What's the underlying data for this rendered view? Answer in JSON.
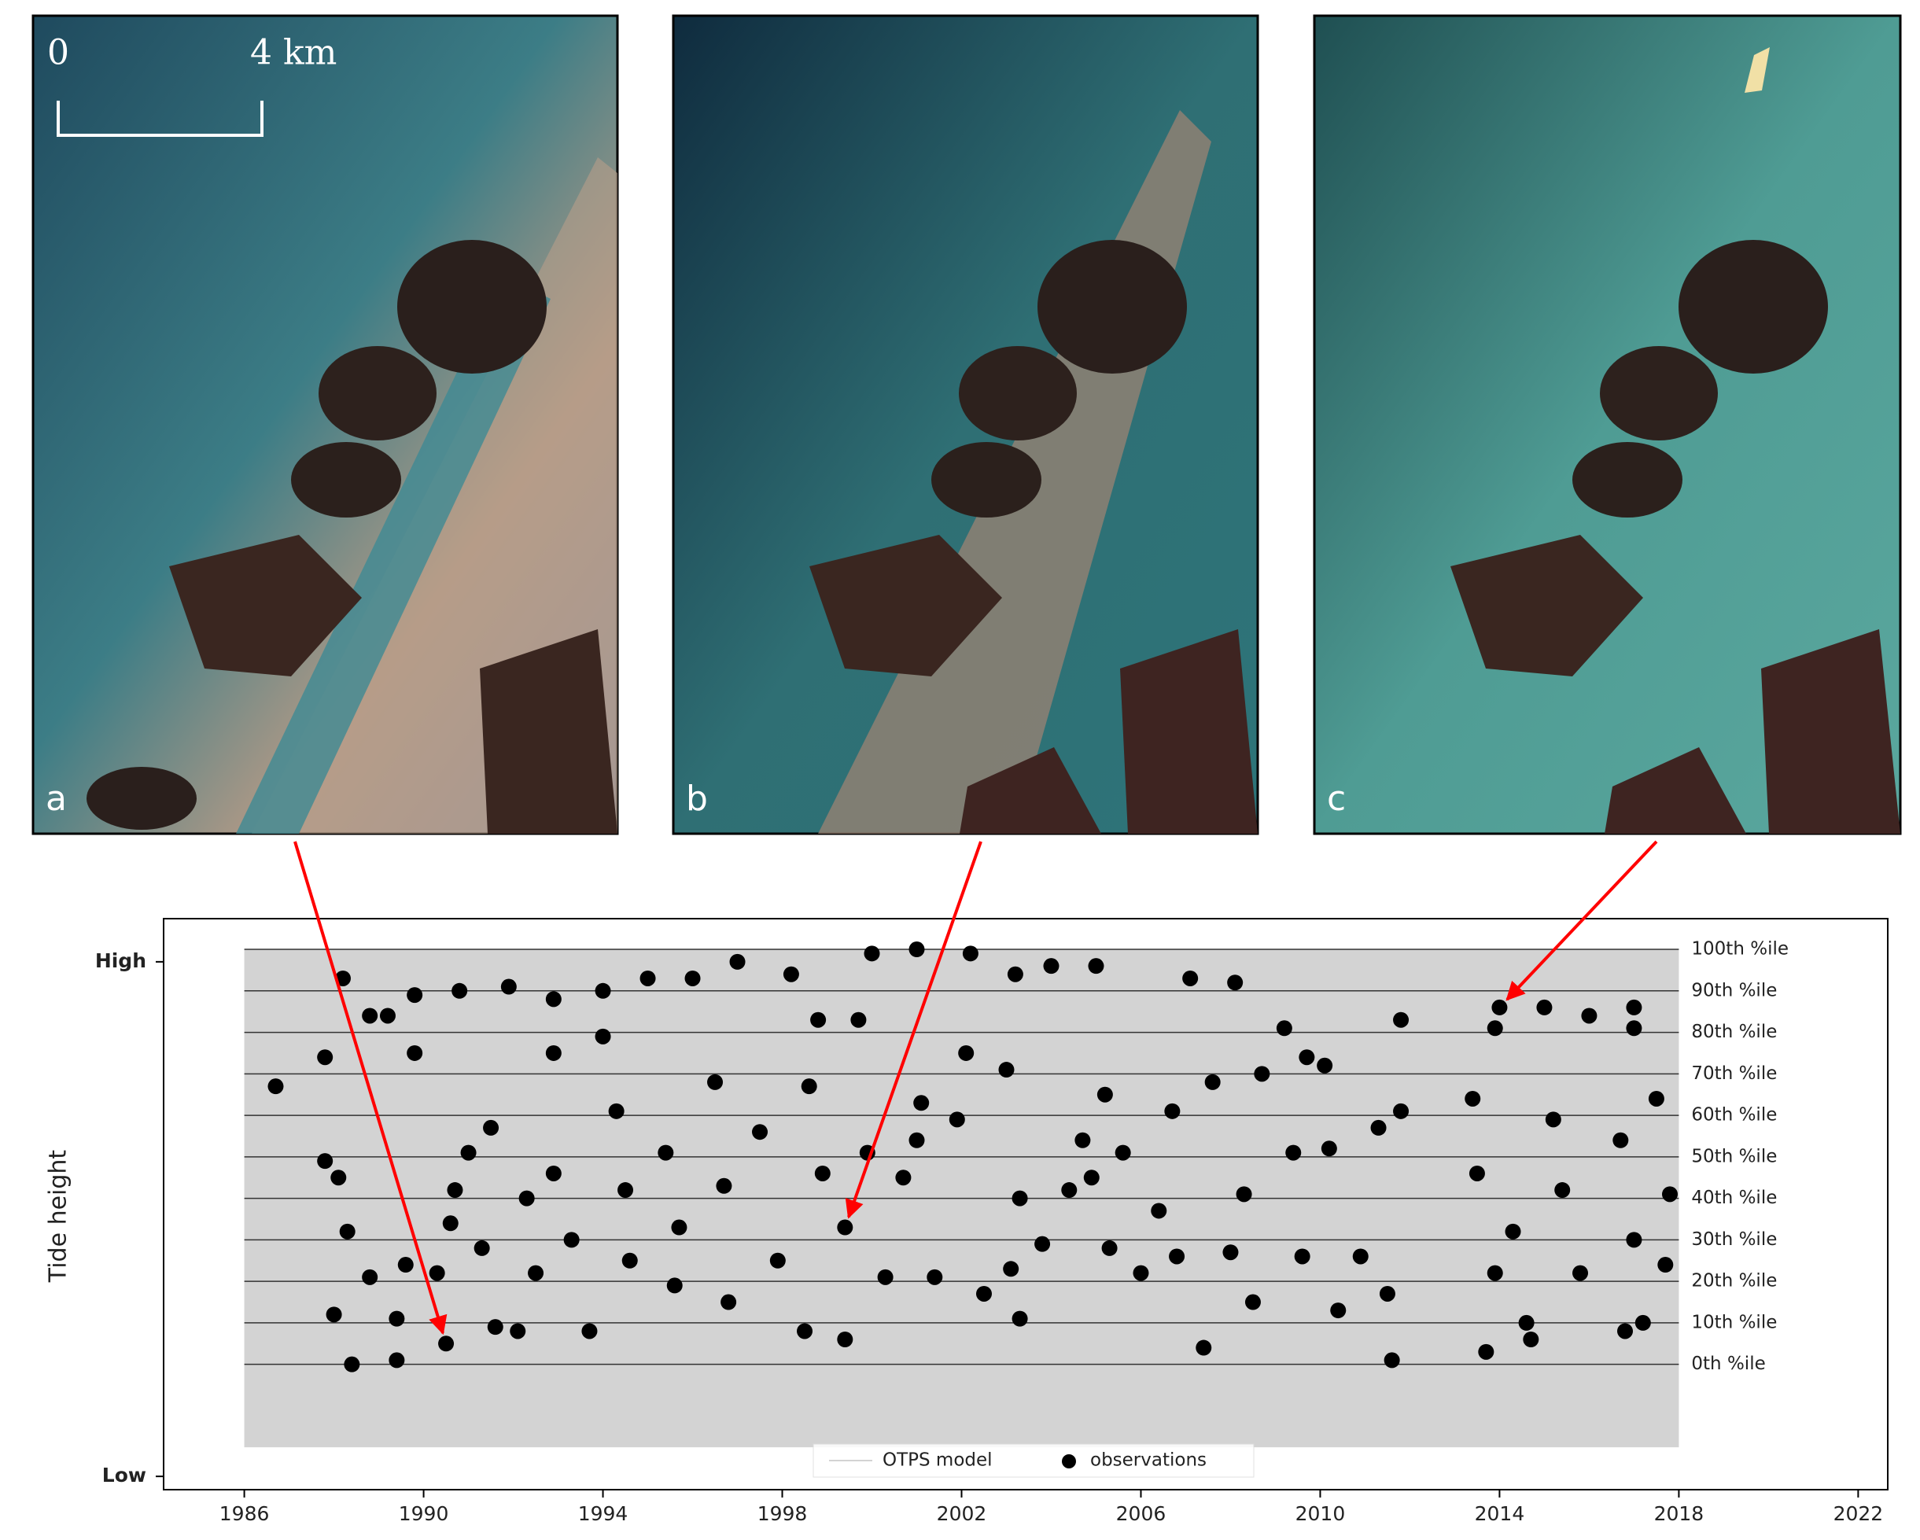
{
  "panels": [
    {
      "label": "a"
    },
    {
      "label": "b"
    },
    {
      "label": "c"
    }
  ],
  "scale_bar": {
    "start": "0",
    "end": "4 km"
  },
  "chart_data": {
    "type": "scatter",
    "y_label": "Tide height",
    "xlim": [
      1984.2,
      2022.66
    ],
    "ylim": [
      -30.2,
      107.4
    ],
    "xticks": [
      1986,
      1990,
      1994,
      1998,
      2002,
      2006,
      2010,
      2014,
      2018,
      2022
    ],
    "yticks": [
      {
        "value": 97,
        "label": "High"
      },
      {
        "value": -27,
        "label": "Low"
      }
    ],
    "hlines": [
      {
        "value": 100,
        "label": "100th %ile"
      },
      {
        "value": 90,
        "label": "90th %ile"
      },
      {
        "value": 80,
        "label": "80th %ile"
      },
      {
        "value": 70,
        "label": "70th %ile"
      },
      {
        "value": 60,
        "label": "60th %ile"
      },
      {
        "value": 50,
        "label": "50th %ile"
      },
      {
        "value": 40,
        "label": "40th %ile"
      },
      {
        "value": 30,
        "label": "30th %ile"
      },
      {
        "value": 20,
        "label": "20th %ile"
      },
      {
        "value": 10,
        "label": "10th %ile"
      },
      {
        "value": 0,
        "label": "0th %ile"
      }
    ],
    "legend": "lower center",
    "model": {
      "name": "OTPS model",
      "color": "#d3d3d3",
      "x": [
        1986,
        2018
      ],
      "high": [
        100,
        100
      ],
      "low": [
        -20,
        -20
      ]
    },
    "series": [
      {
        "name": "observations",
        "color": "#000000",
        "x": [
          1986.7,
          1987.8,
          1987.8,
          1988.1,
          1988,
          1988.2,
          1988.4,
          1988.3,
          1988.8,
          1989.2,
          1989.4,
          1989.4,
          1989.8,
          1989.8,
          1990.5,
          1990.8,
          1990.6,
          1991.9,
          1991,
          1991.6,
          1992.1,
          1992.9,
          1992.9,
          1993.7,
          1994,
          1994,
          1995,
          1995.6,
          1996,
          1997,
          1998.2,
          2000,
          2001,
          2002.2,
          2003.2,
          2004,
          2005,
          1999.4,
          1999.4,
          1998.5,
          1998.8,
          1999.7,
          2001.1,
          2002.1,
          2003.1,
          2003.3,
          2004.4,
          2005.2,
          2006,
          2007.1,
          2007.4,
          2008.1,
          2008.3,
          2009.2,
          2009.7,
          2010.1,
          2010.4,
          2011.6,
          2011.8,
          2011.8,
          2013.4,
          2013.7,
          2013.9,
          2014,
          2014.7,
          2015,
          2016,
          2017,
          2017,
          2017.5,
          2017.7,
          2017.2,
          2014.3,
          2015.4,
          2016.8,
          2013.5,
          2014.6,
          1988.8,
          1989.6,
          1990.3,
          1991.3,
          1992.5,
          1993.3,
          1994.6,
          1995.7,
          1996.8,
          1997.9,
          2000.3,
          2001.4,
          2002.5,
          2003.8,
          2005.3,
          2006.8,
          2008.5,
          2009.6,
          2010.9,
          2011.5,
          2013.9,
          2015.8,
          2017,
          1991.5,
          1992.9,
          1994.3,
          1995.4,
          1996.5,
          1997.5,
          1998.6,
          1999.9,
          2001,
          2001.9,
          2003,
          2004.7,
          2005.6,
          2006.7,
          2007.6,
          2008.7,
          2009.4,
          2010.2,
          2011.3,
          2015.2,
          2016.7,
          2017.8,
          1990.7,
          1992.3,
          1994.5,
          1996.7,
          1998.9,
          2000.7,
          2003.3,
          2004.9,
          2006.4,
          2008
        ],
        "values": [
          67,
          74,
          49,
          45,
          12,
          93,
          0,
          32,
          84,
          84,
          1,
          11,
          75,
          89,
          5,
          90,
          34,
          91,
          51,
          9,
          8,
          88,
          75,
          8,
          90,
          79,
          93,
          19,
          93,
          97,
          94,
          99,
          100,
          99,
          94,
          96,
          96,
          33,
          6,
          8,
          83,
          83,
          63,
          75,
          23,
          11,
          42,
          65,
          22,
          93,
          4,
          92,
          41,
          81,
          74,
          72,
          13,
          1,
          83,
          61,
          64,
          3,
          81,
          86,
          6,
          86,
          84,
          86,
          81,
          64,
          24,
          10,
          32,
          42,
          8,
          46,
          10,
          21,
          24,
          22,
          28,
          22,
          30,
          25,
          33,
          15,
          25,
          21,
          21,
          17,
          29,
          28,
          26,
          15,
          26,
          26,
          17,
          22,
          22,
          30,
          57,
          46,
          61,
          51,
          68,
          56,
          67,
          51,
          54,
          59,
          71,
          54,
          51,
          61,
          68,
          70,
          51,
          52,
          57,
          59,
          54,
          41,
          42,
          40,
          42,
          43,
          46,
          45,
          40,
          45,
          37,
          27
        ]
      }
    ]
  }
}
